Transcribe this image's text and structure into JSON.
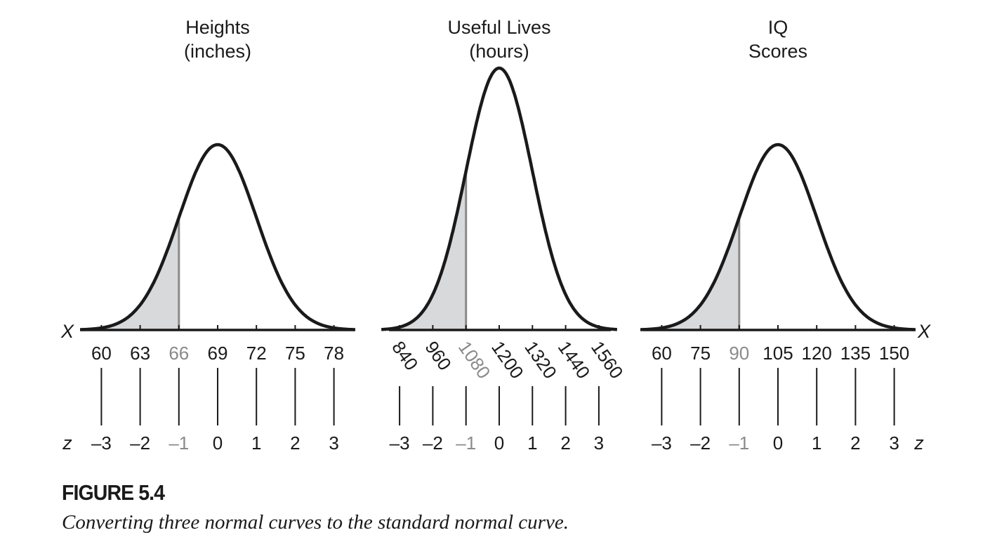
{
  "chart_data": [
    {
      "type": "area",
      "title": [
        "Heights",
        "(inches)"
      ],
      "xlabel": "X",
      "zlabel": "z",
      "distribution": "normal",
      "mean": 69,
      "sd": 3,
      "x_ticks": [
        "60",
        "63",
        "66",
        "69",
        "72",
        "75",
        "78"
      ],
      "z_ticks": [
        "–3",
        "–2",
        "–1",
        "0",
        "1",
        "2",
        "3"
      ],
      "shaded_below": 66,
      "highlight_tick": 2
    },
    {
      "type": "area",
      "title": [
        "Useful Lives",
        "(hours)"
      ],
      "xlabel": "",
      "zlabel": "",
      "distribution": "normal",
      "mean": 1200,
      "sd": 120,
      "x_ticks": [
        "840",
        "960",
        "1080",
        "1200",
        "1320",
        "1440",
        "1560"
      ],
      "z_ticks": [
        "–3",
        "–2",
        "–1",
        "0",
        "1",
        "2",
        "3"
      ],
      "shaded_below": 1080,
      "highlight_tick": 2
    },
    {
      "type": "area",
      "title": [
        "IQ",
        "Scores"
      ],
      "xlabel": "X",
      "zlabel": "z",
      "distribution": "normal",
      "mean": 105,
      "sd": 15,
      "x_ticks": [
        "60",
        "75",
        "90",
        "105",
        "120",
        "135",
        "150"
      ],
      "z_ticks": [
        "–3",
        "–2",
        "–1",
        "0",
        "1",
        "2",
        "3"
      ],
      "shaded_below": 90,
      "highlight_tick": 2
    }
  ],
  "colors": {
    "ink": "#1a1a1a",
    "highlight": "#8a8a8a",
    "shade": "#d8d9db"
  },
  "caption": {
    "number": "FIGURE 5.4",
    "text": "Converting three normal curves to the standard normal curve."
  }
}
